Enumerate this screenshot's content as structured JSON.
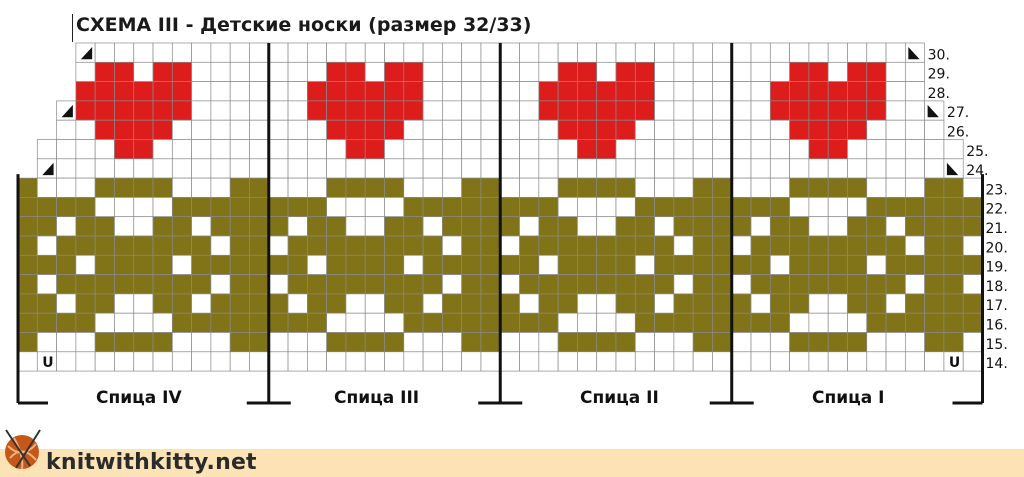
{
  "title": "СХЕМА III  -  Детские носки (размер 32/33)",
  "row_numbers": [
    "30.",
    "29.",
    "28.",
    "27.",
    "26.",
    "25.",
    "24.",
    "23.",
    "22.",
    "21.",
    "20.",
    "19.",
    "18.",
    "17.",
    "16.",
    "15.",
    "14."
  ],
  "needles": [
    "Спица IV",
    "Спица III",
    "Спица II",
    "Спица I"
  ],
  "colors": {
    "heart": "#dd1c1c",
    "cross": "#817318",
    "grid": "#8a8a8a",
    "divider": "#111111",
    "footer": "#fbe3b6"
  },
  "corner_marks": {
    "decrease": "triangle-icon",
    "bottom": "U"
  },
  "footer": {
    "site": "knitwithkitty.net"
  }
}
